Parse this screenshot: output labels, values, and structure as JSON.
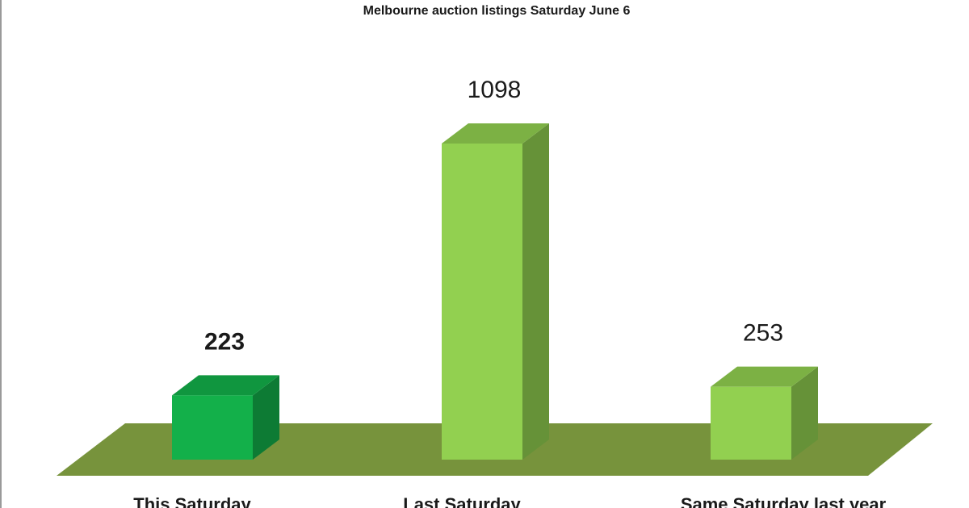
{
  "chart_data": {
    "type": "bar3d",
    "title": "Melbourne auction listings Saturday June 6",
    "categories": [
      "This Saturday",
      "Last Saturday",
      "Same Saturday last year"
    ],
    "values": [
      223,
      1098,
      253
    ],
    "colors": [
      "#13b04a",
      "#92d050",
      "#92d050"
    ],
    "floor_color": "#77933c"
  }
}
